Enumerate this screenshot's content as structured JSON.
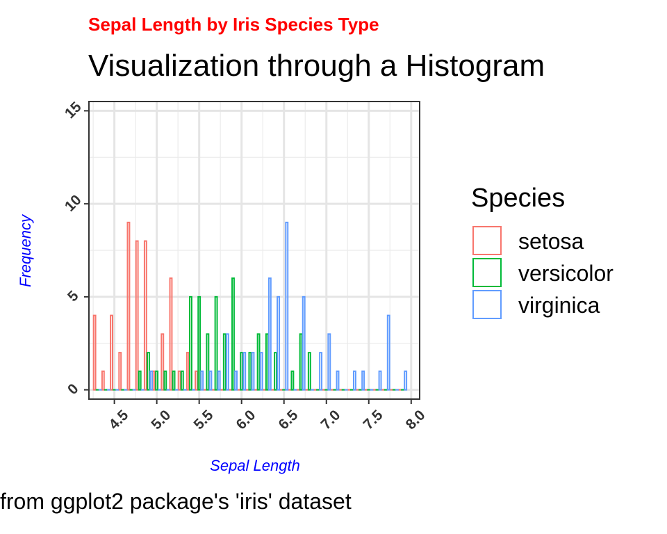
{
  "chart_data": {
    "type": "bar",
    "subtitle": "Sepal Length by Iris Species Type",
    "title": "Visualization through a Histogram",
    "caption": "from ggplot2 package's 'iris' dataset",
    "xlabel": "Sepal Length",
    "ylabel": "Frequency",
    "xlim": [
      4.2,
      8.1
    ],
    "ylim": [
      -0.5,
      15.5
    ],
    "xticks": [
      4.5,
      5.0,
      5.5,
      6.0,
      6.5,
      7.0,
      7.5,
      8.0
    ],
    "xtick_labels": [
      "4.5",
      "5.0",
      "5.5",
      "6.0",
      "6.5",
      "7.0",
      "7.5",
      "8.0"
    ],
    "yticks": [
      0,
      5,
      10,
      15
    ],
    "ytick_labels": [
      "0",
      "5",
      "10",
      "15"
    ],
    "grid": true,
    "bin_width": 0.1,
    "legend": {
      "title": "Species",
      "position": "right"
    },
    "series": [
      {
        "name": "setosa",
        "color": "#F8766D",
        "x": [
          4.3,
          4.4,
          4.5,
          4.6,
          4.7,
          4.8,
          4.9,
          5.0,
          5.1,
          5.2,
          5.3,
          5.4,
          5.5,
          5.6,
          5.7,
          5.8,
          5.9,
          6.0,
          6.1,
          6.2,
          6.3,
          6.4,
          6.5,
          6.6,
          6.7,
          6.8,
          6.9,
          7.0,
          7.1,
          7.2,
          7.3,
          7.4,
          7.5,
          7.6,
          7.7,
          7.8,
          7.9
        ],
        "values": [
          4,
          1,
          4,
          2,
          9,
          8,
          8,
          1,
          3,
          6,
          1,
          2,
          1,
          0,
          0,
          0,
          0,
          0,
          0,
          0,
          0,
          0,
          0,
          0,
          0,
          0,
          0,
          0,
          0,
          0,
          0,
          0,
          0,
          0,
          0,
          0,
          0
        ]
      },
      {
        "name": "versicolor",
        "color": "#00BA38",
        "x": [
          4.3,
          4.4,
          4.5,
          4.6,
          4.7,
          4.8,
          4.9,
          5.0,
          5.1,
          5.2,
          5.3,
          5.4,
          5.5,
          5.6,
          5.7,
          5.8,
          5.9,
          6.0,
          6.1,
          6.2,
          6.3,
          6.4,
          6.5,
          6.6,
          6.7,
          6.8,
          6.9,
          7.0,
          7.1,
          7.2,
          7.3,
          7.4,
          7.5,
          7.6,
          7.7,
          7.8,
          7.9
        ],
        "values": [
          0,
          0,
          0,
          0,
          0,
          1,
          2,
          1,
          1,
          1,
          1,
          5,
          5,
          3,
          5,
          3,
          6,
          2,
          2,
          3,
          3,
          2,
          0,
          1,
          3,
          2,
          0,
          0,
          0,
          0,
          0,
          0,
          0,
          0,
          0,
          0,
          0
        ]
      },
      {
        "name": "virginica",
        "color": "#619CFF",
        "x": [
          4.3,
          4.4,
          4.5,
          4.6,
          4.7,
          4.8,
          4.9,
          5.0,
          5.1,
          5.2,
          5.3,
          5.4,
          5.5,
          5.6,
          5.7,
          5.8,
          5.9,
          6.0,
          6.1,
          6.2,
          6.3,
          6.4,
          6.5,
          6.6,
          6.7,
          6.8,
          6.9,
          7.0,
          7.1,
          7.2,
          7.3,
          7.4,
          7.5,
          7.6,
          7.7,
          7.8,
          7.9
        ],
        "values": [
          0,
          0,
          0,
          0,
          0,
          0,
          1,
          0,
          0,
          0,
          0,
          0,
          1,
          1,
          1,
          3,
          1,
          2,
          2,
          2,
          6,
          5,
          9,
          0,
          5,
          0,
          2,
          3,
          1,
          0,
          1,
          1,
          0,
          1,
          4,
          0,
          1
        ]
      }
    ]
  }
}
